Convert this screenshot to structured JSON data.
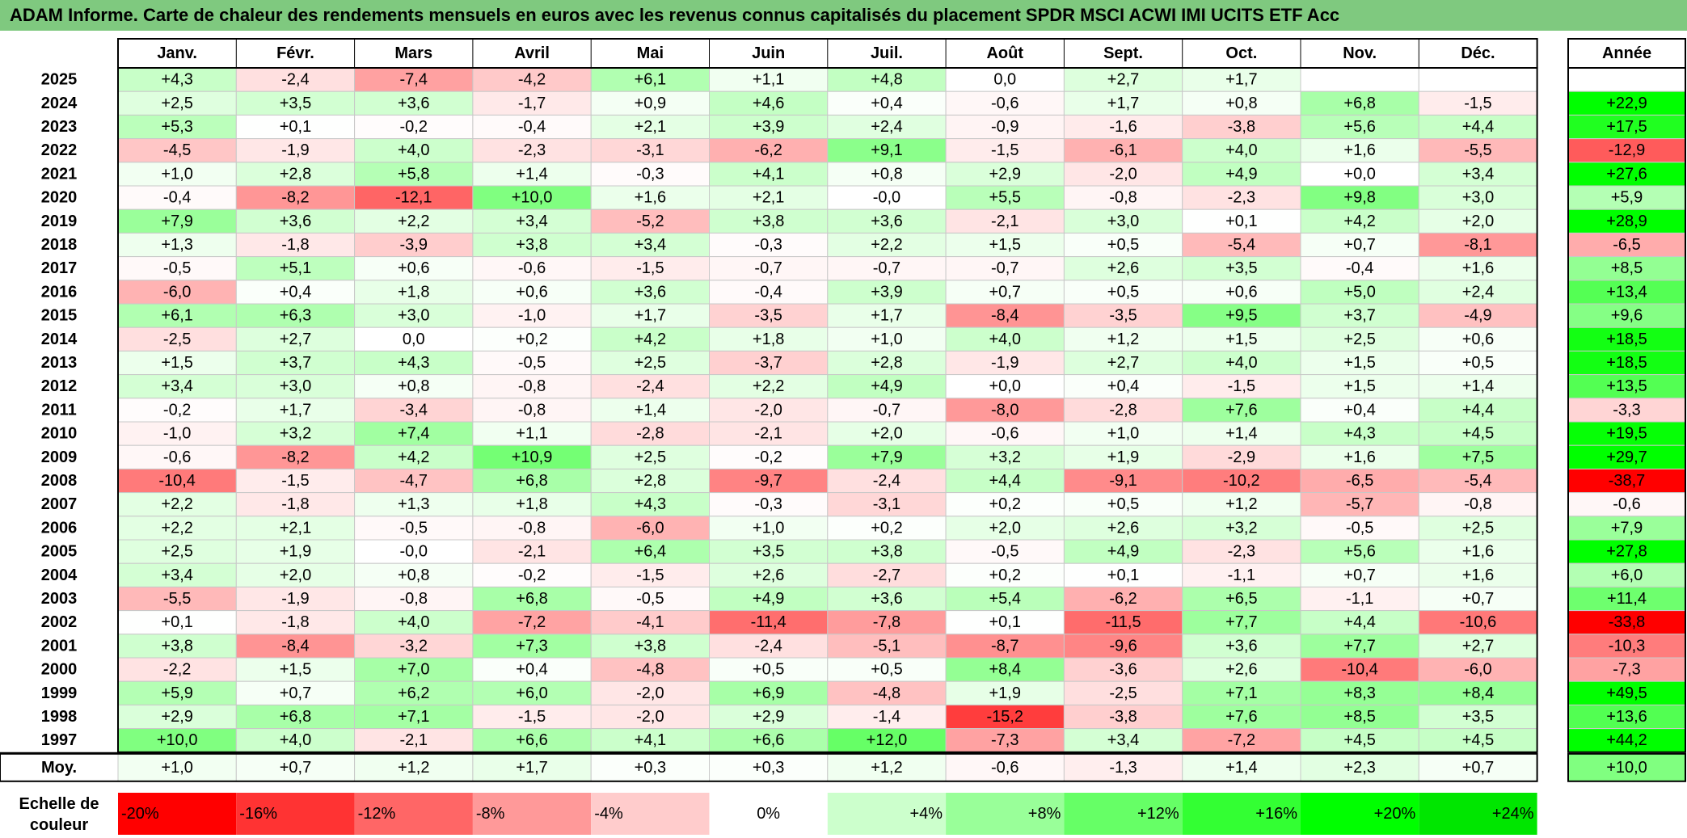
{
  "title": "ADAM Informe. Carte de chaleur des rendements mensuels en euros avec les revenus connus capitalisés du placement SPDR MSCI ACWI IMI UCITS ETF Acc",
  "chart_data": {
    "type": "heatmap",
    "months": [
      "Janv.",
      "Févr.",
      "Mars",
      "Avril",
      "Mai",
      "Juin",
      "Juil.",
      "Août",
      "Sept.",
      "Oct.",
      "Nov.",
      "Déc."
    ],
    "year_header": "Année",
    "rows": [
      {
        "year": "2025",
        "values": [
          "+4,3",
          "-2,4",
          "-7,4",
          "-4,2",
          "+6,1",
          "+1,1",
          "+4,8",
          "0,0",
          "+2,7",
          "+1,7",
          "",
          ""
        ],
        "annual": ""
      },
      {
        "year": "2024",
        "values": [
          "+2,5",
          "+3,5",
          "+3,6",
          "-1,7",
          "+0,9",
          "+4,6",
          "+0,4",
          "-0,6",
          "+1,7",
          "+0,8",
          "+6,8",
          "-1,5"
        ],
        "annual": "+22,9"
      },
      {
        "year": "2023",
        "values": [
          "+5,3",
          "+0,1",
          "-0,2",
          "-0,4",
          "+2,1",
          "+3,9",
          "+2,4",
          "-0,9",
          "-1,6",
          "-3,8",
          "+5,6",
          "+4,4"
        ],
        "annual": "+17,5"
      },
      {
        "year": "2022",
        "values": [
          "-4,5",
          "-1,9",
          "+4,0",
          "-2,3",
          "-3,1",
          "-6,2",
          "+9,1",
          "-1,5",
          "-6,1",
          "+4,0",
          "+1,6",
          "-5,5"
        ],
        "annual": "-12,9"
      },
      {
        "year": "2021",
        "values": [
          "+1,0",
          "+2,8",
          "+5,8",
          "+1,4",
          "-0,3",
          "+4,1",
          "+0,8",
          "+2,9",
          "-2,0",
          "+4,9",
          "+0,0",
          "+3,4"
        ],
        "annual": "+27,6"
      },
      {
        "year": "2020",
        "values": [
          "-0,4",
          "-8,2",
          "-12,1",
          "+10,0",
          "+1,6",
          "+2,1",
          "-0,0",
          "+5,5",
          "-0,8",
          "-2,3",
          "+9,8",
          "+3,0"
        ],
        "annual": "+5,9"
      },
      {
        "year": "2019",
        "values": [
          "+7,9",
          "+3,6",
          "+2,2",
          "+3,4",
          "-5,2",
          "+3,8",
          "+3,6",
          "-2,1",
          "+3,0",
          "+0,1",
          "+4,2",
          "+2,0"
        ],
        "annual": "+28,9"
      },
      {
        "year": "2018",
        "values": [
          "+1,3",
          "-1,8",
          "-3,9",
          "+3,8",
          "+3,4",
          "-0,3",
          "+2,2",
          "+1,5",
          "+0,5",
          "-5,4",
          "+0,7",
          "-8,1"
        ],
        "annual": "-6,5"
      },
      {
        "year": "2017",
        "values": [
          "-0,5",
          "+5,1",
          "+0,6",
          "-0,6",
          "-1,5",
          "-0,7",
          "-0,7",
          "-0,7",
          "+2,6",
          "+3,5",
          "-0,4",
          "+1,6"
        ],
        "annual": "+8,5"
      },
      {
        "year": "2016",
        "values": [
          "-6,0",
          "+0,4",
          "+1,8",
          "+0,6",
          "+3,6",
          "-0,4",
          "+3,9",
          "+0,7",
          "+0,5",
          "+0,6",
          "+5,0",
          "+2,4"
        ],
        "annual": "+13,4"
      },
      {
        "year": "2015",
        "values": [
          "+6,1",
          "+6,3",
          "+3,0",
          "-1,0",
          "+1,7",
          "-3,5",
          "+1,7",
          "-8,4",
          "-3,5",
          "+9,5",
          "+3,7",
          "-4,9"
        ],
        "annual": "+9,6"
      },
      {
        "year": "2014",
        "values": [
          "-2,5",
          "+2,7",
          "0,0",
          "+0,2",
          "+4,2",
          "+1,8",
          "+1,0",
          "+4,0",
          "+1,2",
          "+1,5",
          "+2,5",
          "+0,6"
        ],
        "annual": "+18,5"
      },
      {
        "year": "2013",
        "values": [
          "+1,5",
          "+3,7",
          "+4,3",
          "-0,5",
          "+2,5",
          "-3,7",
          "+2,8",
          "-1,9",
          "+2,7",
          "+4,0",
          "+1,5",
          "+0,5"
        ],
        "annual": "+18,5"
      },
      {
        "year": "2012",
        "values": [
          "+3,4",
          "+3,0",
          "+0,8",
          "-0,8",
          "-2,4",
          "+2,2",
          "+4,9",
          "+0,0",
          "+0,4",
          "-1,5",
          "+1,5",
          "+1,4"
        ],
        "annual": "+13,5"
      },
      {
        "year": "2011",
        "values": [
          "-0,2",
          "+1,7",
          "-3,4",
          "-0,8",
          "+1,4",
          "-2,0",
          "-0,7",
          "-8,0",
          "-2,8",
          "+7,6",
          "+0,4",
          "+4,4"
        ],
        "annual": "-3,3"
      },
      {
        "year": "2010",
        "values": [
          "-1,0",
          "+3,2",
          "+7,4",
          "+1,1",
          "-2,8",
          "-2,1",
          "+2,0",
          "-0,6",
          "+1,0",
          "+1,4",
          "+4,3",
          "+4,5"
        ],
        "annual": "+19,5"
      },
      {
        "year": "2009",
        "values": [
          "-0,6",
          "-8,2",
          "+4,2",
          "+10,9",
          "+2,5",
          "-0,2",
          "+7,9",
          "+3,2",
          "+1,9",
          "-2,9",
          "+1,6",
          "+7,5"
        ],
        "annual": "+29,7"
      },
      {
        "year": "2008",
        "values": [
          "-10,4",
          "-1,5",
          "-4,7",
          "+6,8",
          "+2,8",
          "-9,7",
          "-2,4",
          "+4,4",
          "-9,1",
          "-10,2",
          "-6,5",
          "-5,4"
        ],
        "annual": "-38,7"
      },
      {
        "year": "2007",
        "values": [
          "+2,2",
          "-1,8",
          "+1,3",
          "+1,8",
          "+4,3",
          "-0,3",
          "-3,1",
          "+0,2",
          "+0,5",
          "+1,2",
          "-5,7",
          "-0,8"
        ],
        "annual": "-0,6"
      },
      {
        "year": "2006",
        "values": [
          "+2,2",
          "+2,1",
          "-0,5",
          "-0,8",
          "-6,0",
          "+1,0",
          "+0,2",
          "+2,0",
          "+2,6",
          "+3,2",
          "-0,5",
          "+2,5"
        ],
        "annual": "+7,9"
      },
      {
        "year": "2005",
        "values": [
          "+2,5",
          "+1,9",
          "-0,0",
          "-2,1",
          "+6,4",
          "+3,5",
          "+3,8",
          "-0,5",
          "+4,9",
          "-2,3",
          "+5,6",
          "+1,6"
        ],
        "annual": "+27,8"
      },
      {
        "year": "2004",
        "values": [
          "+3,4",
          "+2,0",
          "+0,8",
          "-0,2",
          "-1,5",
          "+2,6",
          "-2,7",
          "+0,2",
          "+0,1",
          "-1,1",
          "+0,7",
          "+1,6"
        ],
        "annual": "+6,0"
      },
      {
        "year": "2003",
        "values": [
          "-5,5",
          "-1,9",
          "-0,8",
          "+6,8",
          "-0,5",
          "+4,9",
          "+3,6",
          "+5,4",
          "-6,2",
          "+6,5",
          "-1,1",
          "+0,7"
        ],
        "annual": "+11,4"
      },
      {
        "year": "2002",
        "values": [
          "+0,1",
          "-1,8",
          "+4,0",
          "-7,2",
          "-4,1",
          "-11,4",
          "-7,8",
          "+0,1",
          "-11,5",
          "+7,7",
          "+4,4",
          "-10,6"
        ],
        "annual": "-33,8"
      },
      {
        "year": "2001",
        "values": [
          "+3,8",
          "-8,4",
          "-3,2",
          "+7,3",
          "+3,8",
          "-2,4",
          "-5,1",
          "-8,7",
          "-9,6",
          "+3,6",
          "+7,7",
          "+2,7"
        ],
        "annual": "-10,3"
      },
      {
        "year": "2000",
        "values": [
          "-2,2",
          "+1,5",
          "+7,0",
          "+0,4",
          "-4,8",
          "+0,5",
          "+0,5",
          "+8,4",
          "-3,6",
          "+2,6",
          "-10,4",
          "-6,0"
        ],
        "annual": "-7,3"
      },
      {
        "year": "1999",
        "values": [
          "+5,9",
          "+0,7",
          "+6,2",
          "+6,0",
          "-2,0",
          "+6,9",
          "-4,8",
          "+1,9",
          "-2,5",
          "+7,1",
          "+8,3",
          "+8,4"
        ],
        "annual": "+49,5"
      },
      {
        "year": "1998",
        "values": [
          "+2,9",
          "+6,8",
          "+7,1",
          "-1,5",
          "-2,0",
          "+2,9",
          "-1,4",
          "-15,2",
          "-3,8",
          "+7,6",
          "+8,5",
          "+3,5"
        ],
        "annual": "+13,6"
      },
      {
        "year": "1997",
        "values": [
          "+10,0",
          "+4,0",
          "-2,1",
          "+6,6",
          "+4,1",
          "+6,6",
          "+12,0",
          "-7,3",
          "+3,4",
          "-7,2",
          "+4,5",
          "+4,5"
        ],
        "annual": "+44,2"
      }
    ],
    "average": {
      "label": "Moy.",
      "values": [
        "+1,0",
        "+0,7",
        "+1,2",
        "+1,7",
        "+0,3",
        "+0,3",
        "+1,2",
        "-0,6",
        "-1,3",
        "+1,4",
        "+2,3",
        "+0,7"
      ],
      "annual": "+10,0"
    },
    "scale": {
      "label_line1": "Echelle de",
      "label_line2": "couleur",
      "stops": [
        {
          "label": "-20%",
          "value": -20,
          "color": "#ff0000"
        },
        {
          "label": "-16%",
          "value": -16,
          "color": "#ff3333"
        },
        {
          "label": "-12%",
          "value": -12,
          "color": "#ff6666"
        },
        {
          "label": "-8%",
          "value": -8,
          "color": "#ff9999"
        },
        {
          "label": "-4%",
          "value": -4,
          "color": "#ffcccc"
        },
        {
          "label": "0%",
          "value": 0,
          "color": "#ffffff"
        },
        {
          "label": "+4%",
          "value": 4,
          "color": "#ccffcc"
        },
        {
          "label": "+8%",
          "value": 8,
          "color": "#99ff99"
        },
        {
          "label": "+12%",
          "value": 12,
          "color": "#66ff66"
        },
        {
          "label": "+16%",
          "value": 16,
          "color": "#33ff33"
        },
        {
          "label": "+20%",
          "value": 20,
          "color": "#00ff00"
        },
        {
          "label": "+24%",
          "value": 24,
          "color": "#00e600"
        }
      ]
    }
  },
  "colors": {
    "title_bar": "#7fc97f",
    "negative": "#ff0000",
    "positive": "#00ff00",
    "neutral": "#ffffff"
  }
}
